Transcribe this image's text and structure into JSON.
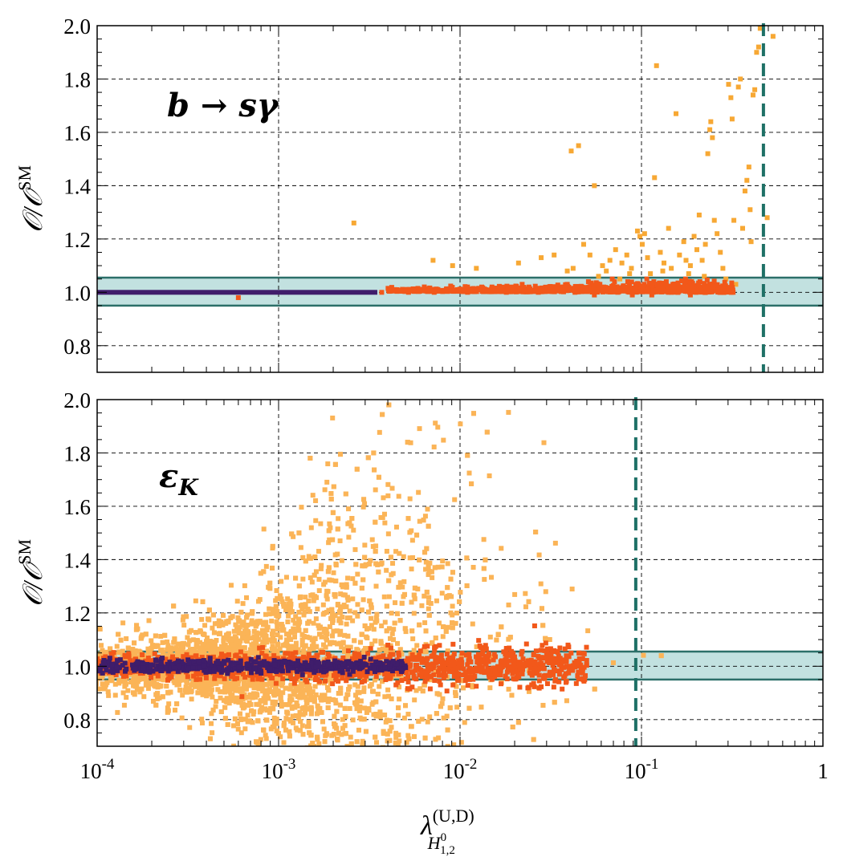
{
  "chart_data": [
    {
      "type": "scatter",
      "panel_label": "b → sγ",
      "ylabel": "𝒪/𝒪SM",
      "xlabel": "",
      "xscale": "log",
      "xlim": [
        0.0001,
        1
      ],
      "ylim": [
        0.7,
        2.0
      ],
      "ytick_labels": [
        "0.8",
        "1.0",
        "1.2",
        "1.4",
        "1.6",
        "1.8",
        "2.0"
      ],
      "ytick_values": [
        0.8,
        1.0,
        1.2,
        1.4,
        1.6,
        1.8,
        2.0
      ],
      "xtick_labels_shown": false,
      "grid": true,
      "band": {
        "ymin": 0.95,
        "ymax": 1.055,
        "color": "#c2e1e0",
        "edge": "#2c6f69"
      },
      "limit_line": {
        "x": 0.47,
        "color": "#1e7066",
        "style": "dashed"
      },
      "series": [
        {
          "color": "#f7a834",
          "points": [
            [
              0.0026,
              1.26
            ],
            [
              0.0071,
              1.12
            ],
            [
              0.0091,
              1.1
            ],
            [
              0.0123,
              1.09
            ],
            [
              0.021,
              1.11
            ],
            [
              0.028,
              1.13
            ],
            [
              0.033,
              1.14
            ],
            [
              0.039,
              1.08
            ],
            [
              0.041,
              1.53
            ],
            [
              0.045,
              1.55
            ],
            [
              0.048,
              1.18
            ],
            [
              0.052,
              1.14
            ],
            [
              0.055,
              1.4
            ],
            [
              0.061,
              1.1
            ],
            [
              0.067,
              1.12
            ],
            [
              0.072,
              1.16
            ],
            [
              0.078,
              1.11
            ],
            [
              0.083,
              1.14
            ],
            [
              0.088,
              1.09
            ],
            [
              0.095,
              1.23
            ],
            [
              0.098,
              1.21
            ],
            [
              0.101,
              1.18
            ],
            [
              0.104,
              1.22
            ],
            [
              0.108,
              1.13
            ],
            [
              0.112,
              1.07
            ],
            [
              0.118,
              1.43
            ],
            [
              0.121,
              1.85
            ],
            [
              0.127,
              1.15
            ],
            [
              0.133,
              1.11
            ],
            [
              0.141,
              1.24
            ],
            [
              0.146,
              1.09
            ],
            [
              0.155,
              1.67
            ],
            [
              0.162,
              1.14
            ],
            [
              0.171,
              1.19
            ],
            [
              0.176,
              1.12
            ],
            [
              0.186,
              1.1
            ],
            [
              0.195,
              1.21
            ],
            [
              0.202,
              1.16
            ],
            [
              0.208,
              1.29
            ],
            [
              0.216,
              1.12
            ],
            [
              0.225,
              1.18
            ],
            [
              0.232,
              1.52
            ],
            [
              0.238,
              1.61
            ],
            [
              0.241,
              1.64
            ],
            [
              0.246,
              1.58
            ],
            [
              0.252,
              1.27
            ],
            [
              0.261,
              1.22
            ],
            [
              0.272,
              1.15
            ],
            [
              0.281,
              1.09
            ],
            [
              0.292,
              1.05
            ],
            [
              0.302,
              1.78
            ],
            [
              0.311,
              1.73
            ],
            [
              0.316,
              1.65
            ],
            [
              0.323,
              1.27
            ],
            [
              0.331,
              1.03
            ],
            [
              0.342,
              1.77
            ],
            [
              0.351,
              1.8
            ],
            [
              0.361,
              1.24
            ],
            [
              0.372,
              1.38
            ],
            [
              0.381,
              1.42
            ],
            [
              0.391,
              1.47
            ],
            [
              0.397,
              1.31
            ],
            [
              0.402,
              1.19
            ],
            [
              0.412,
              1.74
            ],
            [
              0.421,
              1.76
            ],
            [
              0.431,
              1.9
            ],
            [
              0.442,
              1.92
            ],
            [
              0.451,
              1.99
            ],
            [
              0.493,
              1.28
            ],
            [
              0.531,
              1.96
            ],
            [
              0.042,
              1.09
            ],
            [
              0.058,
              1.06
            ],
            [
              0.064,
              1.08
            ],
            [
              0.076,
              1.05
            ],
            [
              0.086,
              1.07
            ],
            [
              0.131,
              1.08
            ],
            [
              0.182,
              1.07
            ],
            [
              0.222,
              1.06
            ]
          ]
        },
        {
          "color": "#f2581a",
          "points": [
            [
              0.0006,
              0.98
            ],
            [
              0.0037,
              1.0
            ],
            [
              0.0045,
              1.01
            ],
            [
              0.0052,
              1.0
            ],
            [
              0.0061,
              1.01
            ],
            [
              0.0072,
              1.0
            ],
            [
              0.0084,
              1.01
            ],
            [
              0.0097,
              1.01
            ],
            [
              0.011,
              1.0
            ],
            [
              0.013,
              1.01
            ],
            [
              0.015,
              1.02
            ],
            [
              0.018,
              1.0
            ],
            [
              0.021,
              1.01
            ],
            [
              0.024,
              1.02
            ],
            [
              0.027,
              1.0
            ],
            [
              0.031,
              1.02
            ],
            [
              0.035,
              1.01
            ],
            [
              0.039,
              1.03
            ],
            [
              0.043,
              1.0
            ],
            [
              0.047,
              1.02
            ],
            [
              0.051,
              1.04
            ],
            [
              0.055,
              0.99
            ],
            [
              0.059,
              1.03
            ],
            [
              0.064,
              1.01
            ],
            [
              0.069,
              1.05
            ],
            [
              0.074,
              1.0
            ],
            [
              0.079,
              1.02
            ],
            [
              0.084,
              1.04
            ],
            [
              0.089,
              0.99
            ],
            [
              0.095,
              1.03
            ],
            [
              0.101,
              1.01
            ],
            [
              0.107,
              1.05
            ],
            [
              0.114,
              0.99
            ],
            [
              0.121,
              1.03
            ],
            [
              0.129,
              1.02
            ],
            [
              0.137,
              1.04
            ],
            [
              0.146,
              1.0
            ],
            [
              0.155,
              1.03
            ],
            [
              0.165,
              1.01
            ],
            [
              0.175,
              1.05
            ],
            [
              0.186,
              0.99
            ],
            [
              0.198,
              1.02
            ],
            [
              0.21,
              1.04
            ],
            [
              0.223,
              1.0
            ],
            [
              0.237,
              1.03
            ],
            [
              0.252,
              1.01
            ],
            [
              0.268,
              1.02
            ],
            [
              0.285,
              1.0
            ],
            [
              0.303,
              1.01
            ],
            [
              0.32,
              1.0
            ],
            [
              0.011,
              1.02
            ],
            [
              0.016,
              1.01
            ],
            [
              0.022,
              1.03
            ],
            [
              0.029,
              1.01
            ],
            [
              0.036,
              1.02
            ],
            [
              0.045,
              1.01
            ],
            [
              0.053,
              1.03
            ],
            [
              0.062,
              1.02
            ],
            [
              0.071,
              1.04
            ],
            [
              0.081,
              1.02
            ],
            [
              0.093,
              1.03
            ],
            [
              0.104,
              1.02
            ],
            [
              0.117,
              1.04
            ],
            [
              0.132,
              1.02
            ],
            [
              0.149,
              1.03
            ],
            [
              0.168,
              1.02
            ],
            [
              0.189,
              1.04
            ],
            [
              0.213,
              1.02
            ],
            [
              0.241,
              1.03
            ]
          ]
        },
        {
          "color": "#3f1d6b",
          "line": true,
          "x_range": [
            0.0001,
            0.0035
          ],
          "y": 1.0
        }
      ]
    },
    {
      "type": "scatter",
      "panel_label": "εK",
      "ylabel": "𝒪/𝒪SM",
      "xlabel": "λ(U,D)H01,2",
      "xscale": "log",
      "xlim": [
        0.0001,
        1
      ],
      "ylim": [
        0.7,
        2.0
      ],
      "ytick_labels": [
        "0.8",
        "1.0",
        "1.2",
        "1.4",
        "1.6",
        "1.8",
        "2.0"
      ],
      "ytick_values": [
        0.8,
        1.0,
        1.2,
        1.4,
        1.6,
        1.8,
        2.0
      ],
      "xtick_labels": [
        "10-4",
        "10-3",
        "10-2",
        "10-1",
        "1"
      ],
      "xtick_values": [
        0.0001,
        0.001,
        0.01,
        0.1,
        1
      ],
      "grid": true,
      "band": {
        "ymin": 0.95,
        "ymax": 1.055,
        "color": "#c2e1e0",
        "edge": "#2c6f69"
      },
      "limit_line": {
        "x": 0.093,
        "color": "#1e7066",
        "style": "dashed"
      },
      "series": [
        {
          "color": "#fbb457",
          "distribution": "dense cloud centred near 1.0 spreading to 2.0, densest between 0.003 and 0.03",
          "points": []
        },
        {
          "color": "#f2581a",
          "distribution": "band 0.95–1.05 from 0.0001 to ~0.05",
          "points": []
        },
        {
          "color": "#3f1d6b",
          "distribution": "band 0.97–1.03 from 0.0001 to ~0.005",
          "points": []
        }
      ]
    }
  ]
}
